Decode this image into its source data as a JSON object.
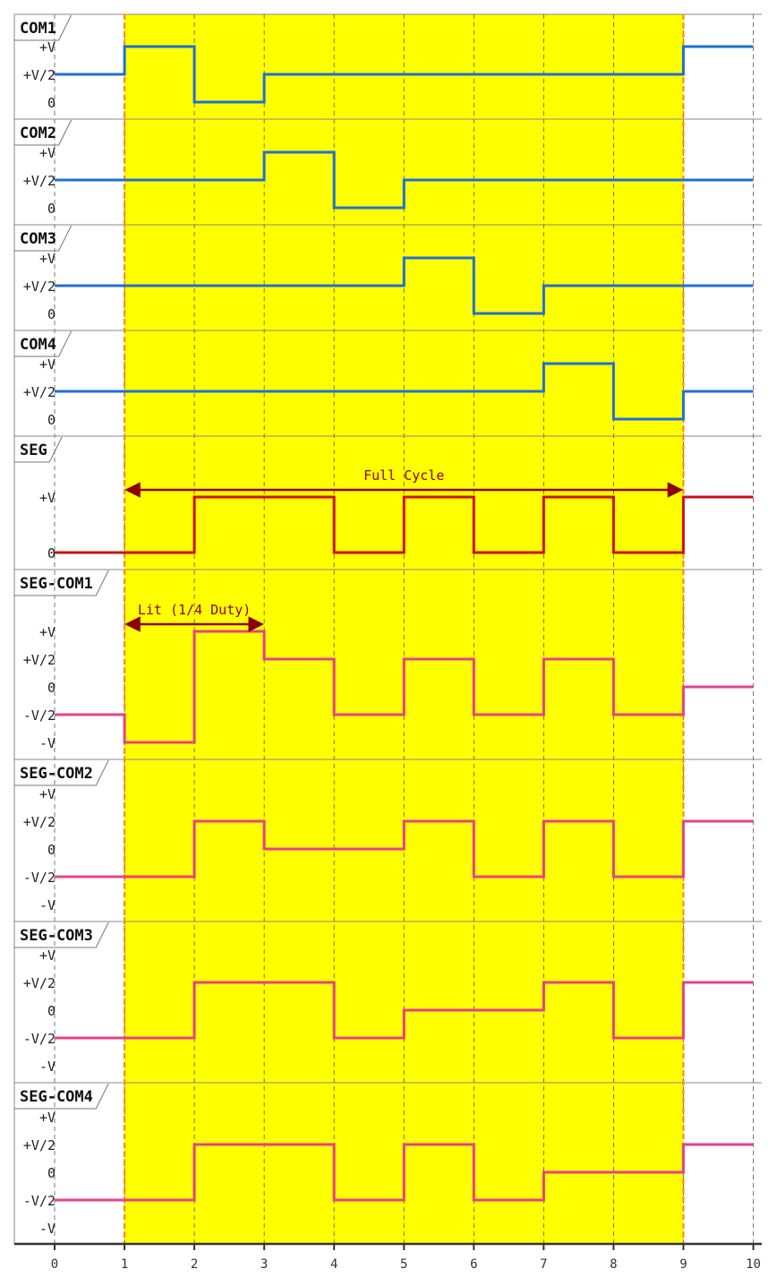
{
  "chart_data": {
    "type": "line",
    "x_ticks": [
      "0",
      "1",
      "2",
      "3",
      "4",
      "5",
      "6",
      "7",
      "8",
      "9",
      "10"
    ],
    "xlim": [
      0,
      10
    ],
    "highlight_range": [
      1,
      9
    ],
    "highlight_color": "#ffff00",
    "boundary_line_color": "#ff8c1a",
    "colors": {
      "com": "#1f6fd6",
      "seg": "#cc1111",
      "diff": "#e8408a",
      "annotation": "#8b0000"
    },
    "annotations": [
      {
        "text": "Full Cycle",
        "panel": 4,
        "from": 1,
        "to": 9
      },
      {
        "text": "Lit (1/4 Duty)",
        "panel": 5,
        "from": 1,
        "to": 3
      }
    ],
    "series": [
      {
        "name": "COM1",
        "color_key": "com",
        "levels": [
          "+V",
          "+V/2",
          "0"
        ],
        "ylim": [
          0,
          1
        ],
        "x": [
          0,
          1,
          1,
          2,
          2,
          3,
          3,
          9,
          9,
          10
        ],
        "y": [
          0.5,
          0.5,
          1,
          1,
          0,
          0,
          0.5,
          0.5,
          1,
          1
        ]
      },
      {
        "name": "COM2",
        "color_key": "com",
        "levels": [
          "+V",
          "+V/2",
          "0"
        ],
        "ylim": [
          0,
          1
        ],
        "x": [
          0,
          3,
          3,
          4,
          4,
          5,
          5,
          10
        ],
        "y": [
          0.5,
          0.5,
          1,
          1,
          0,
          0,
          0.5,
          0.5
        ]
      },
      {
        "name": "COM3",
        "color_key": "com",
        "levels": [
          "+V",
          "+V/2",
          "0"
        ],
        "ylim": [
          0,
          1
        ],
        "x": [
          0,
          5,
          5,
          6,
          6,
          7,
          7,
          10
        ],
        "y": [
          0.5,
          0.5,
          1,
          1,
          0,
          0,
          0.5,
          0.5
        ]
      },
      {
        "name": "COM4",
        "color_key": "com",
        "levels": [
          "+V",
          "+V/2",
          "0"
        ],
        "ylim": [
          0,
          1
        ],
        "x": [
          0,
          7,
          7,
          8,
          8,
          9,
          9,
          10
        ],
        "y": [
          0.5,
          0.5,
          1,
          1,
          0,
          0,
          0.5,
          0.5
        ]
      },
      {
        "name": "SEG",
        "color_key": "seg",
        "levels": [
          "+V",
          "0"
        ],
        "ylim": [
          0,
          1
        ],
        "x": [
          0,
          2,
          2,
          4,
          4,
          5,
          5,
          6,
          6,
          7,
          7,
          8,
          8,
          9,
          9,
          10
        ],
        "y": [
          0,
          0,
          1,
          1,
          0,
          0,
          1,
          1,
          0,
          0,
          1,
          1,
          0,
          0,
          1,
          1
        ]
      },
      {
        "name": "SEG-COM1",
        "color_key": "diff",
        "levels": [
          "+V",
          "+V/2",
          "0",
          "-V/2",
          "-V"
        ],
        "ylim": [
          -1,
          1
        ],
        "x": [
          0,
          1,
          1,
          2,
          2,
          3,
          3,
          4,
          4,
          5,
          5,
          6,
          6,
          7,
          7,
          8,
          8,
          9,
          9,
          10
        ],
        "y": [
          -0.5,
          -0.5,
          -1,
          -1,
          1,
          1,
          0.5,
          0.5,
          -0.5,
          -0.5,
          0.5,
          0.5,
          -0.5,
          -0.5,
          0.5,
          0.5,
          -0.5,
          -0.5,
          0,
          0
        ]
      },
      {
        "name": "SEG-COM2",
        "color_key": "diff",
        "levels": [
          "+V",
          "+V/2",
          "0",
          "-V/2",
          "-V"
        ],
        "ylim": [
          -1,
          1
        ],
        "x": [
          0,
          2,
          2,
          3,
          3,
          5,
          5,
          6,
          6,
          7,
          7,
          8,
          8,
          9,
          9,
          10
        ],
        "y": [
          -0.5,
          -0.5,
          0.5,
          0.5,
          0,
          0,
          0.5,
          0.5,
          -0.5,
          -0.5,
          0.5,
          0.5,
          -0.5,
          -0.5,
          0.5,
          0.5
        ]
      },
      {
        "name": "SEG-COM3",
        "color_key": "diff",
        "levels": [
          "+V",
          "+V/2",
          "0",
          "-V/2",
          "-V"
        ],
        "ylim": [
          -1,
          1
        ],
        "x": [
          0,
          2,
          2,
          4,
          4,
          5,
          5,
          7,
          7,
          8,
          8,
          9,
          9,
          10
        ],
        "y": [
          -0.5,
          -0.5,
          0.5,
          0.5,
          -0.5,
          -0.5,
          0,
          0,
          0.5,
          0.5,
          -0.5,
          -0.5,
          0.5,
          0.5
        ]
      },
      {
        "name": "SEG-COM4",
        "color_key": "diff",
        "levels": [
          "+V",
          "+V/2",
          "0",
          "-V/2",
          "-V"
        ],
        "ylim": [
          -1,
          1
        ],
        "x": [
          0,
          2,
          2,
          4,
          4,
          5,
          5,
          6,
          6,
          7,
          7,
          9,
          9,
          10
        ],
        "y": [
          -0.5,
          -0.5,
          0.5,
          0.5,
          -0.5,
          -0.5,
          0.5,
          0.5,
          -0.5,
          -0.5,
          0,
          0,
          0.5,
          0.5
        ]
      }
    ]
  }
}
